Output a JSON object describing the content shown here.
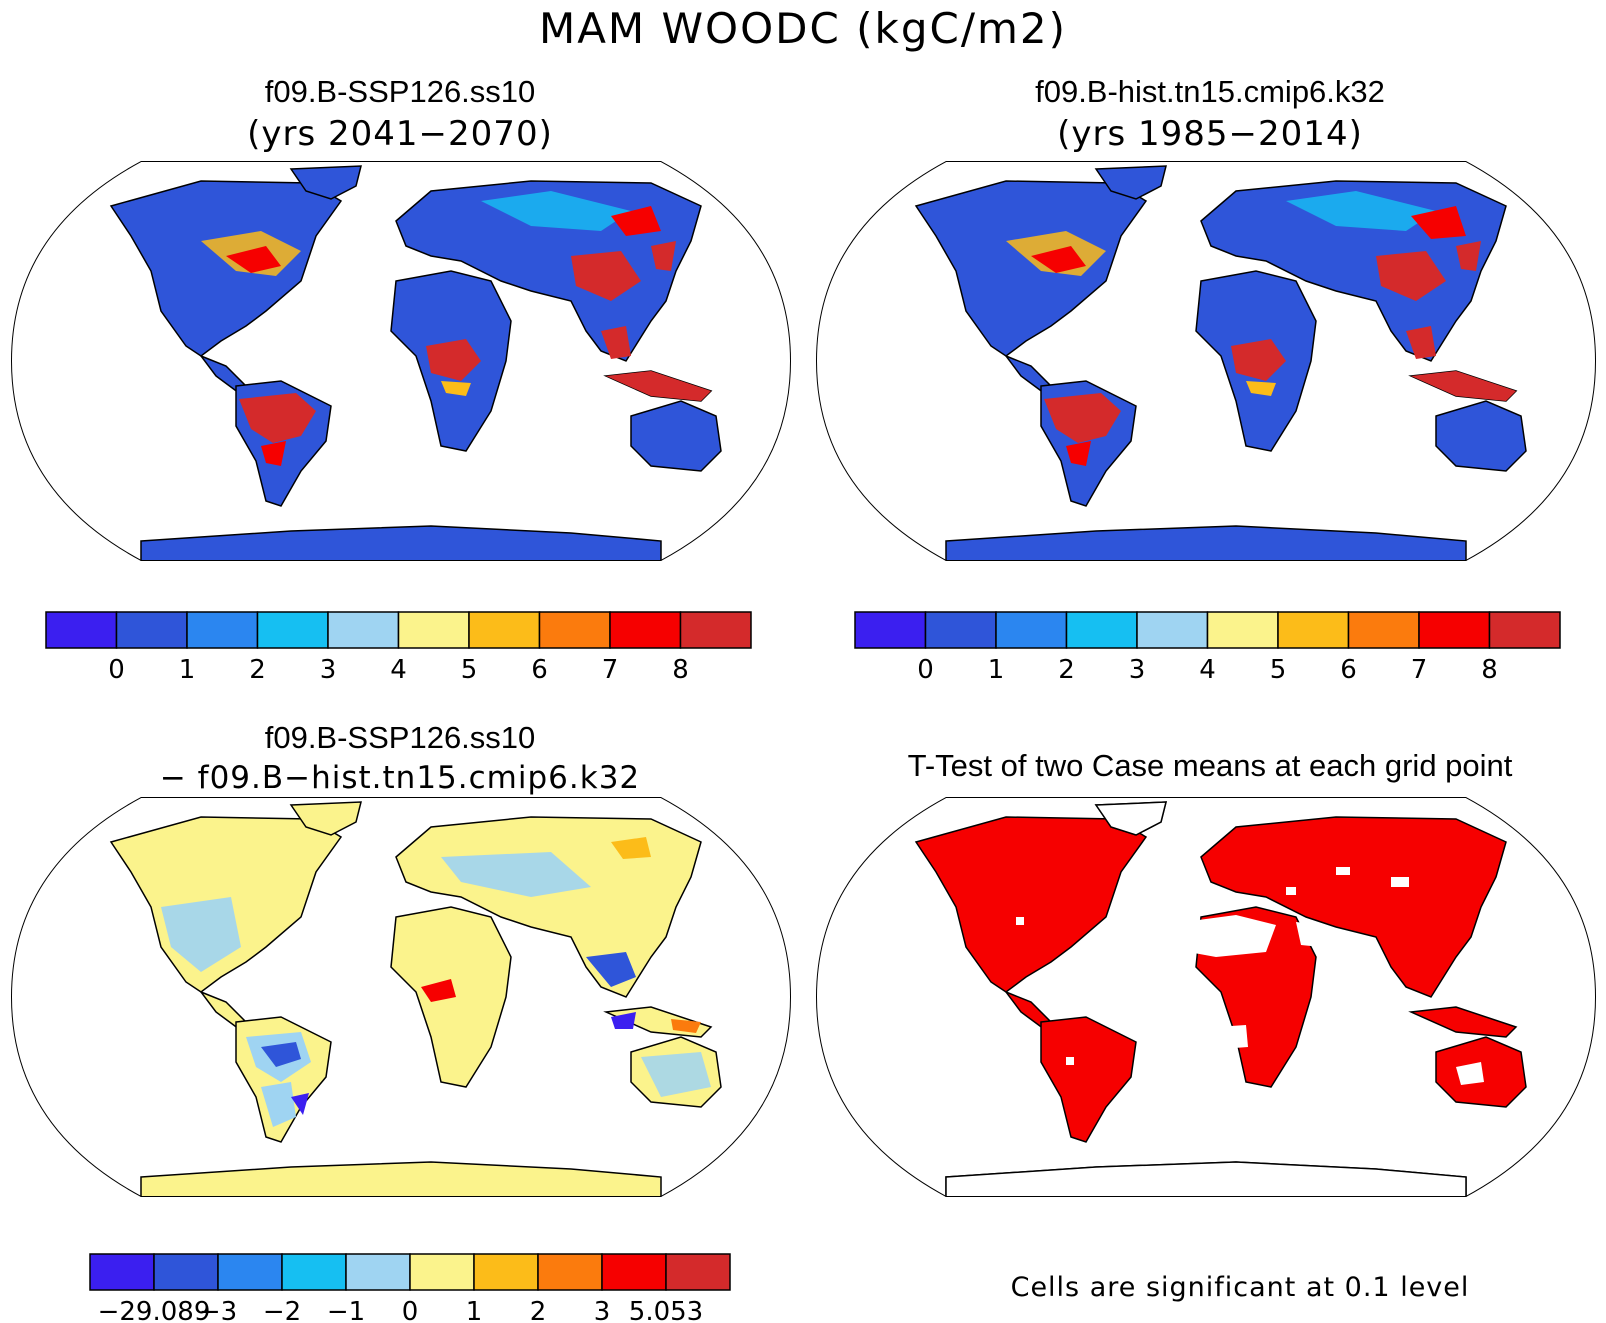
{
  "figure": {
    "title": "MAM WOODC (kgC/m2)"
  },
  "panels": [
    {
      "id": "case1",
      "title": "f09.B-SSP126.ss10",
      "subtitle": "(yrs 2041−2070)",
      "colorbar": {
        "colors": [
          "#3b1ff0",
          "#2f55d9",
          "#2b86f0",
          "#16bff2",
          "#9fd4f2",
          "#fbf38c",
          "#fcbc19",
          "#fb7b0d",
          "#f60000",
          "#d42a2b"
        ],
        "tick_labels": [
          "0",
          "1",
          "2",
          "3",
          "4",
          "5",
          "6",
          "7",
          "8"
        ]
      }
    },
    {
      "id": "case2",
      "title": "f09.B-hist.tn15.cmip6.k32",
      "subtitle": "(yrs 1985−2014)",
      "colorbar": {
        "colors": [
          "#3b1ff0",
          "#2f55d9",
          "#2b86f0",
          "#16bff2",
          "#9fd4f2",
          "#fbf38c",
          "#fcbc19",
          "#fb7b0d",
          "#f60000",
          "#d42a2b"
        ],
        "tick_labels": [
          "0",
          "1",
          "2",
          "3",
          "4",
          "5",
          "6",
          "7",
          "8"
        ]
      }
    },
    {
      "id": "diff",
      "title": "f09.B-SSP126.ss10",
      "subtitle": "− f09.B−hist.tn15.cmip6.k32",
      "colorbar": {
        "colors": [
          "#3b1ff0",
          "#2f55d9",
          "#2b86f0",
          "#16bff2",
          "#9fd4f2",
          "#fbf38c",
          "#fcbc19",
          "#fb7b0d",
          "#f60000",
          "#d42a2b"
        ],
        "tick_labels": [
          "−29.089",
          "−3",
          "−2",
          "−1",
          "0",
          "1",
          "2",
          "3",
          "5.053"
        ]
      }
    },
    {
      "id": "ttest",
      "title": "T-Test of two Case means at each grid point",
      "note": "Cells are significant at 0.1 level",
      "color": "#f60000"
    }
  ],
  "colors": {
    "land_low": "#2f55d9",
    "land_diff": "#fbf38c",
    "land_diff_neg": "#9fd4f2",
    "tropic_high": "#d42a2b",
    "sig": "#f60000"
  }
}
